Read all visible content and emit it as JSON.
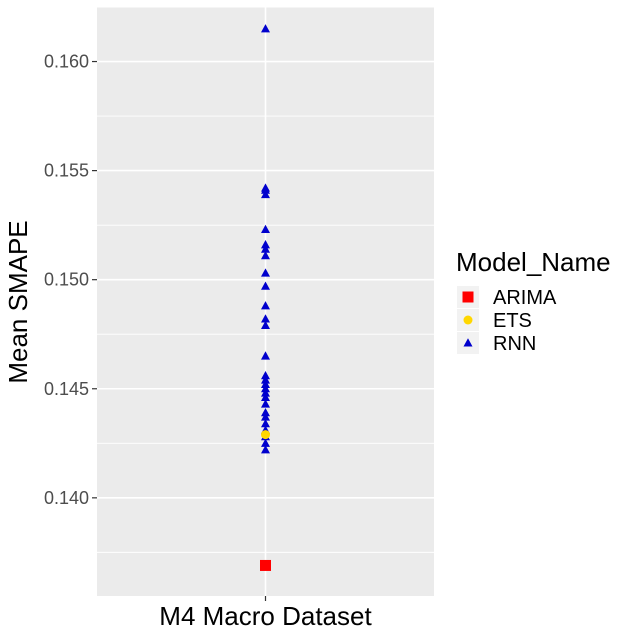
{
  "chart_data": {
    "type": "scatter",
    "title": "",
    "xlabel": "M4 Macro Dataset",
    "ylabel": "Mean SMAPE",
    "categories": [
      ""
    ],
    "ylim": [
      0.1355,
      0.1625
    ],
    "yticks": [
      0.14,
      0.145,
      0.15,
      0.155,
      0.16
    ],
    "ytick_labels": [
      "0.140",
      "0.145",
      "0.150",
      "0.155",
      "0.160"
    ],
    "grid": true,
    "legend": {
      "title": "Model_Name",
      "position": "right"
    },
    "series": [
      {
        "name": "ARIMA",
        "color": "#ff0000",
        "marker": "square",
        "values": [
          0.1369
        ]
      },
      {
        "name": "ETS",
        "color": "#ffd700",
        "marker": "circle",
        "values": [
          0.1429
        ]
      },
      {
        "name": "RNN",
        "color": "#0000cd",
        "marker": "triangle",
        "values": [
          0.1615,
          0.1542,
          0.1541,
          0.1539,
          0.1523,
          0.1516,
          0.1514,
          0.1511,
          0.1503,
          0.1497,
          0.1488,
          0.1482,
          0.1479,
          0.1465,
          0.1456,
          0.1454,
          0.1452,
          0.145,
          0.1448,
          0.1446,
          0.1443,
          0.1439,
          0.1437,
          0.1434,
          0.1431,
          0.1428,
          0.1425,
          0.1422
        ]
      }
    ]
  }
}
